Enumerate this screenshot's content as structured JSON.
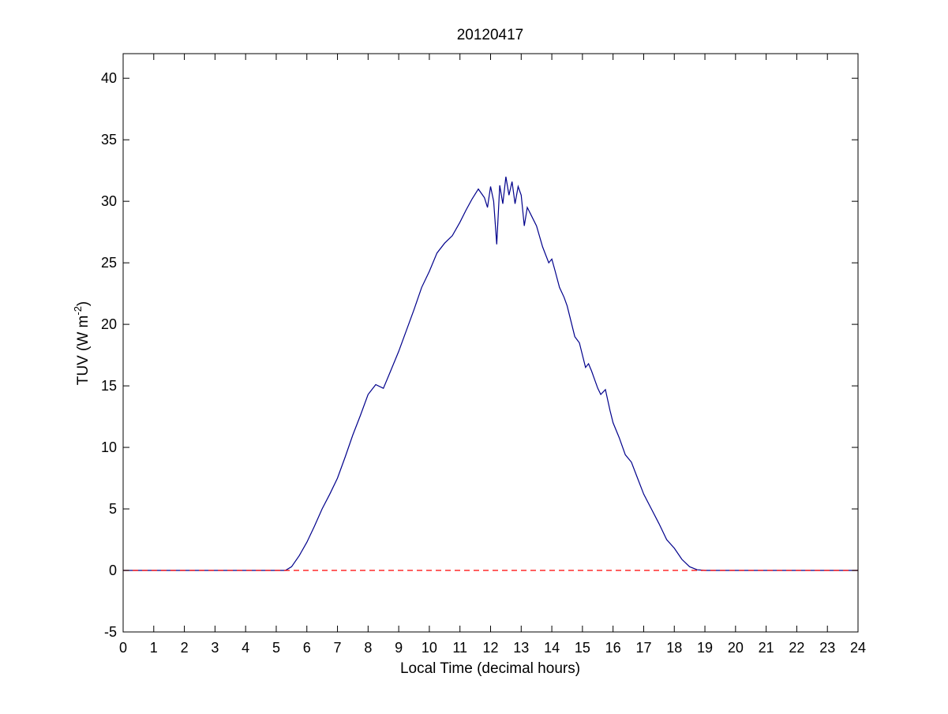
{
  "chart_data": {
    "type": "line",
    "title": "20120417",
    "xlabel": "Local Time (decimal hours)",
    "ylabel": "TUV (W m",
    "ylabel_superscript": "-2",
    "ylabel_suffix": ")",
    "xlim": [
      0,
      24
    ],
    "ylim": [
      -5,
      42
    ],
    "xticks": [
      0,
      1,
      2,
      3,
      4,
      5,
      6,
      7,
      8,
      9,
      10,
      11,
      12,
      13,
      14,
      15,
      16,
      17,
      18,
      19,
      20,
      21,
      22,
      23,
      24
    ],
    "yticks": [
      -5,
      0,
      5,
      10,
      15,
      20,
      25,
      30,
      35,
      40
    ],
    "grid": false,
    "legend": "none",
    "series": [
      {
        "color": "#00008B",
        "style": "solid",
        "x": [
          0,
          5.0,
          5.3,
          5.5,
          5.75,
          6.0,
          6.25,
          6.5,
          6.75,
          7.0,
          7.25,
          7.5,
          7.75,
          8.0,
          8.25,
          8.5,
          8.7,
          9.0,
          9.25,
          9.5,
          9.75,
          10.0,
          10.25,
          10.5,
          10.75,
          11.0,
          11.2,
          11.4,
          11.6,
          11.8,
          11.9,
          12.0,
          12.1,
          12.2,
          12.3,
          12.4,
          12.5,
          12.6,
          12.7,
          12.8,
          12.9,
          13.0,
          13.1,
          13.2,
          13.3,
          13.5,
          13.7,
          13.9,
          14.0,
          14.1,
          14.25,
          14.4,
          14.5,
          14.6,
          14.75,
          14.9,
          15.0,
          15.1,
          15.2,
          15.3,
          15.4,
          15.5,
          15.6,
          15.75,
          15.9,
          16.0,
          16.2,
          16.4,
          16.6,
          16.8,
          17.0,
          17.25,
          17.5,
          17.75,
          18.0,
          18.25,
          18.5,
          18.75,
          19.0,
          19.25,
          24
        ],
        "y": [
          0,
          0,
          0,
          0.3,
          1.2,
          2.3,
          3.6,
          5.0,
          6.2,
          7.5,
          9.2,
          11.0,
          12.6,
          14.3,
          15.1,
          14.8,
          16.0,
          17.8,
          19.5,
          21.2,
          23.0,
          24.3,
          25.8,
          26.6,
          27.2,
          28.3,
          29.3,
          30.2,
          31.0,
          30.3,
          29.5,
          31.2,
          30.0,
          26.5,
          31.3,
          29.8,
          32.0,
          30.5,
          31.6,
          29.8,
          31.2,
          30.5,
          28.0,
          29.5,
          29.0,
          28.0,
          26.3,
          25.0,
          25.3,
          24.4,
          23.0,
          22.2,
          21.5,
          20.5,
          19.0,
          18.5,
          17.5,
          16.5,
          16.8,
          16.2,
          15.5,
          14.8,
          14.3,
          14.7,
          13.0,
          12.0,
          10.8,
          9.4,
          8.8,
          7.5,
          6.2,
          5.0,
          3.8,
          2.5,
          1.8,
          0.9,
          0.3,
          0.05,
          0,
          0,
          0
        ]
      },
      {
        "color": "#FF0000",
        "style": "dashed",
        "x": [
          0,
          24
        ],
        "y": [
          0,
          0
        ]
      }
    ]
  }
}
